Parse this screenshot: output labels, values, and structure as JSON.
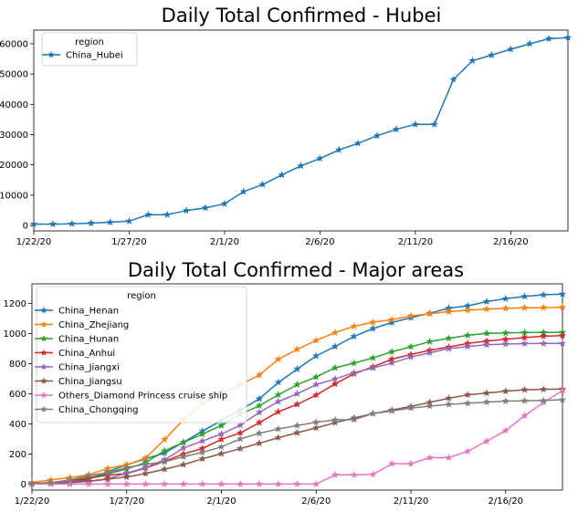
{
  "chart_data": [
    {
      "type": "line",
      "title": "Daily Total Confirmed - Hubei",
      "legend_title": "region",
      "legend_position": "top-left",
      "x_tick_labels": [
        "1/22/20",
        "1/27/20",
        "2/1/20",
        "2/6/20",
        "2/11/20",
        "2/16/20"
      ],
      "y_tick_labels": [
        "0",
        "10000",
        "20000",
        "30000",
        "40000",
        "50000",
        "60000"
      ],
      "ylim": [
        -1800,
        64500
      ],
      "x_dates": [
        "1/22/20",
        "1/23/20",
        "1/24/20",
        "1/25/20",
        "1/26/20",
        "1/27/20",
        "1/28/20",
        "1/29/20",
        "1/30/20",
        "1/31/20",
        "2/1/20",
        "2/2/20",
        "2/3/20",
        "2/4/20",
        "2/5/20",
        "2/6/20",
        "2/7/20",
        "2/8/20",
        "2/9/20",
        "2/10/20",
        "2/11/20",
        "2/12/20",
        "2/13/20",
        "2/14/20",
        "2/15/20",
        "2/16/20",
        "2/17/20",
        "2/18/20",
        "2/19/20"
      ],
      "series": [
        {
          "name": "China_Hubei",
          "color": "#1f77b4",
          "values": [
            444,
            444,
            549,
            761,
            1058,
            1423,
            3554,
            3554,
            4903,
            5806,
            7153,
            11177,
            13522,
            16678,
            19665,
            22112,
            24953,
            27100,
            29631,
            31728,
            33366,
            33366,
            48206,
            54406,
            56249,
            58182,
            59989,
            61682,
            62031
          ]
        }
      ]
    },
    {
      "type": "line",
      "title": "Daily Total Confirmed - Major areas",
      "legend_title": "region",
      "legend_position": "top-left",
      "x_tick_labels": [
        "1/22/20",
        "1/27/20",
        "2/1/20",
        "2/6/20",
        "2/11/20",
        "2/16/20"
      ],
      "y_tick_labels": [
        "0",
        "200",
        "400",
        "600",
        "800",
        "1000",
        "1200"
      ],
      "ylim": [
        -40,
        1330
      ],
      "x_dates": [
        "1/22/20",
        "1/23/20",
        "1/24/20",
        "1/25/20",
        "1/26/20",
        "1/27/20",
        "1/28/20",
        "1/29/20",
        "1/30/20",
        "1/31/20",
        "2/1/20",
        "2/2/20",
        "2/3/20",
        "2/4/20",
        "2/5/20",
        "2/6/20",
        "2/7/20",
        "2/8/20",
        "2/9/20",
        "2/10/20",
        "2/11/20",
        "2/12/20",
        "2/13/20",
        "2/14/20",
        "2/15/20",
        "2/16/20",
        "2/17/20",
        "2/18/20",
        "2/19/20"
      ],
      "series": [
        {
          "name": "China_Henan",
          "color": "#1f77b4",
          "values": [
            5,
            5,
            9,
            32,
            83,
            128,
            168,
            206,
            278,
            352,
            422,
            493,
            566,
            675,
            764,
            851,
            914,
            981,
            1033,
            1073,
            1105,
            1135,
            1169,
            1184,
            1212,
            1231,
            1246,
            1257,
            1262
          ]
        },
        {
          "name": "China_Zhejiang",
          "color": "#ff7f0e",
          "values": [
            10,
            27,
            43,
            62,
            104,
            128,
            173,
            296,
            428,
            538,
            599,
            661,
            724,
            829,
            895,
            954,
            1006,
            1048,
            1075,
            1092,
            1117,
            1131,
            1145,
            1155,
            1162,
            1167,
            1171,
            1172,
            1174
          ]
        },
        {
          "name": "China_Hunan",
          "color": "#2ca02c",
          "values": [
            4,
            9,
            24,
            43,
            69,
            100,
            143,
            221,
            277,
            332,
            389,
            463,
            521,
            593,
            661,
            711,
            772,
            803,
            838,
            879,
            912,
            946,
            968,
            988,
            1001,
            1004,
            1006,
            1007,
            1008
          ]
        },
        {
          "name": "China_Anhui",
          "color": "#d62728",
          "values": [
            1,
            9,
            15,
            39,
            60,
            70,
            106,
            152,
            200,
            237,
            297,
            340,
            408,
            480,
            530,
            591,
            665,
            733,
            779,
            830,
            860,
            889,
            910,
            934,
            950,
            962,
            973,
            982,
            986
          ]
        },
        {
          "name": "China_Jiangxi",
          "color": "#9467bd",
          "values": [
            2,
            7,
            18,
            18,
            36,
            72,
            109,
            162,
            240,
            286,
            333,
            391,
            476,
            548,
            600,
            661,
            698,
            740,
            771,
            804,
            844,
            872,
            900,
            913,
            925,
            930,
            933,
            934,
            934
          ]
        },
        {
          "name": "China_Jiangsu",
          "color": "#8c564b",
          "values": [
            1,
            5,
            9,
            18,
            33,
            47,
            70,
            99,
            129,
            168,
            202,
            236,
            271,
            308,
            341,
            373,
            408,
            439,
            468,
            492,
            515,
            543,
            570,
            593,
            604,
            617,
            626,
            629,
            631
          ]
        },
        {
          "name": "Others_Diamond Princess cruise ship",
          "color": "#e377c2",
          "values": [
            0,
            0,
            0,
            0,
            0,
            0,
            0,
            0,
            0,
            0,
            0,
            0,
            0,
            0,
            0,
            0,
            61,
            61,
            64,
            135,
            135,
            175,
            175,
            218,
            285,
            355,
            454,
            542,
            621
          ]
        },
        {
          "name": "China_Chongqing",
          "color": "#7f7f7f",
          "values": [
            5,
            9,
            27,
            57,
            75,
            110,
            132,
            147,
            182,
            211,
            247,
            300,
            337,
            366,
            389,
            411,
            426,
            428,
            468,
            486,
            505,
            518,
            529,
            537,
            544,
            551,
            553,
            555,
            560
          ]
        }
      ]
    }
  ]
}
